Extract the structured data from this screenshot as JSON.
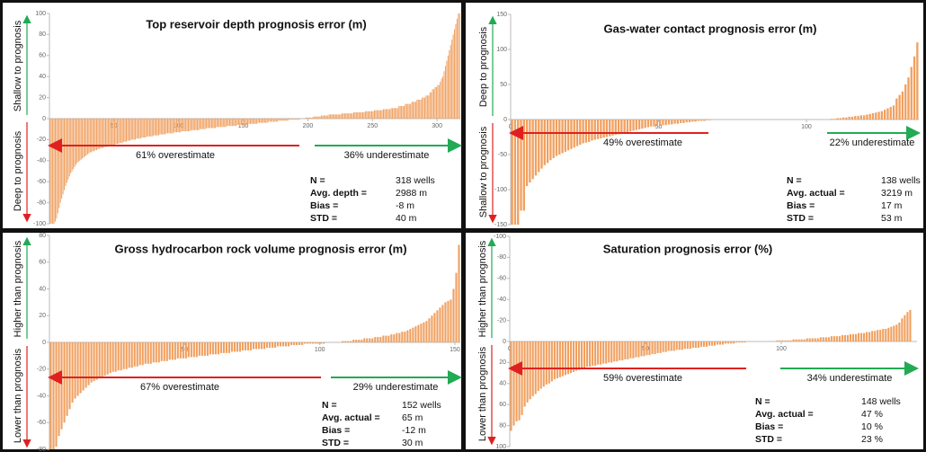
{
  "chart_data": [
    {
      "type": "bar",
      "title": "Top reservoir depth prognosis error (m)",
      "y_label_upper": "Shallow to prognosis",
      "y_label_lower": "Deep to prognosis",
      "color": "#f0a060",
      "xlim": [
        0,
        318
      ],
      "xticks": [
        50,
        100,
        150,
        200,
        250,
        300
      ],
      "ylim": [
        -100,
        100
      ],
      "yticks": [
        -100,
        -80,
        -60,
        -40,
        -20,
        0,
        20,
        40,
        60,
        80,
        100
      ],
      "annotations": [
        "61% overestimate",
        "36% underestimate"
      ],
      "stats": [
        {
          "label": "N =",
          "value": "318 wells"
        },
        {
          "label": "Avg. depth =",
          "value": "2988 m"
        },
        {
          "label": "Bias =",
          "value": "-8 m"
        },
        {
          "label": "STD =",
          "value": "40 m"
        }
      ],
      "values": [
        -100,
        -100,
        -100,
        -100,
        -98,
        -95,
        -90,
        -85,
        -80,
        -76,
        -72,
        -68,
        -64,
        -61,
        -58,
        -55,
        -52,
        -50,
        -48,
        -46,
        -44,
        -42,
        -41,
        -40,
        -39,
        -38,
        -37,
        -36,
        -35,
        -34,
        -33,
        -32,
        -32,
        -31,
        -31,
        -30,
        -30,
        -29,
        -29,
        -28,
        -28,
        -28,
        -27,
        -27,
        -27,
        -26,
        -26,
        -26,
        -25,
        -25,
        -25,
        -24,
        -24,
        -24,
        -23,
        -23,
        -23,
        -22,
        -22,
        -22,
        -21,
        -21,
        -21,
        -20,
        -20,
        -20,
        -20,
        -19,
        -19,
        -19,
        -19,
        -18,
        -18,
        -18,
        -18,
        -17,
        -17,
        -17,
        -17,
        -17,
        -16,
        -16,
        -16,
        -16,
        -16,
        -15,
        -15,
        -15,
        -15,
        -15,
        -14,
        -14,
        -14,
        -14,
        -14,
        -14,
        -13,
        -13,
        -13,
        -13,
        -13,
        -13,
        -12,
        -12,
        -12,
        -12,
        -12,
        -12,
        -12,
        -11,
        -11,
        -11,
        -11,
        -11,
        -11,
        -11,
        -10,
        -10,
        -10,
        -10,
        -10,
        -9,
        -9,
        -9,
        -9,
        -9,
        -9,
        -9,
        -9,
        -8,
        -8,
        -8,
        -8,
        -8,
        -8,
        -8,
        -8,
        -7,
        -7,
        -7,
        -7,
        -7,
        -7,
        -7,
        -7,
        -6,
        -6,
        -6,
        -6,
        -6,
        -6,
        -6,
        -6,
        -5,
        -5,
        -5,
        -5,
        -5,
        -5,
        -5,
        -5,
        -4,
        -4,
        -4,
        -4,
        -4,
        -4,
        -4,
        -4,
        -3,
        -3,
        -3,
        -3,
        -3,
        -3,
        -3,
        -3,
        -2,
        -2,
        -2,
        -2,
        -2,
        -2,
        -2,
        -2,
        -1,
        -1,
        -1,
        -1,
        -1,
        -1,
        -1,
        -1,
        -1,
        0,
        0,
        0,
        0,
        1,
        1,
        1,
        1,
        1,
        1,
        2,
        2,
        2,
        2,
        2,
        2,
        3,
        3,
        3,
        3,
        3,
        3,
        4,
        4,
        4,
        4,
        4,
        4,
        4,
        4,
        4,
        4,
        5,
        5,
        5,
        5,
        5,
        5,
        5,
        5,
        5,
        6,
        6,
        6,
        6,
        6,
        6,
        6,
        6,
        6,
        7,
        7,
        7,
        7,
        7,
        7,
        7,
        8,
        8,
        8,
        8,
        8,
        8,
        8,
        9,
        9,
        9,
        9,
        9,
        9,
        10,
        10,
        10,
        10,
        10,
        10,
        12,
        12,
        12,
        12,
        12,
        14,
        14,
        14,
        14,
        14,
        16,
        16,
        16,
        16,
        18,
        18,
        18,
        18,
        20,
        20,
        20,
        22,
        22,
        22,
        25,
        25,
        28,
        28,
        30,
        30,
        32,
        32,
        35,
        38,
        40,
        45,
        50,
        55,
        60,
        65,
        70,
        75,
        80,
        85,
        90,
        95,
        100,
        100
      ]
    },
    {
      "type": "bar",
      "title": "Gas-water contact prognosis error (m)",
      "y_label_upper": "Deep to prognosis",
      "y_label_lower": "Shallow to prognosis",
      "color": "#f0a060",
      "xlim": [
        0,
        138
      ],
      "xticks": [
        0,
        50,
        100
      ],
      "ylim": [
        -150,
        150
      ],
      "yticks": [
        -150,
        -100,
        -50,
        0,
        50,
        100,
        150
      ],
      "annotations": [
        "49% overestimate",
        "22% underestimate"
      ],
      "stats": [
        {
          "label": "N =",
          "value": "138 wells"
        },
        {
          "label": "Avg. actual =",
          "value": "3219 m"
        },
        {
          "label": "Bias =",
          "value": "17 m"
        },
        {
          "label": "STD =",
          "value": "53 m"
        }
      ],
      "values": [
        -150,
        -150,
        -150,
        -130,
        -130,
        -95,
        -90,
        -85,
        -80,
        -75,
        -70,
        -65,
        -62,
        -58,
        -55,
        -52,
        -50,
        -48,
        -46,
        -44,
        -42,
        -40,
        -38,
        -36,
        -34,
        -33,
        -32,
        -30,
        -29,
        -28,
        -27,
        -26,
        -25,
        -24,
        -23,
        -22,
        -21,
        -20,
        -19,
        -18,
        -17,
        -16,
        -15,
        -14,
        -13,
        -12,
        -11,
        -10,
        -10,
        -9,
        -9,
        -8,
        -8,
        -7,
        -7,
        -6,
        -6,
        -5,
        -5,
        -4,
        -4,
        -3,
        -3,
        -2,
        -2,
        -2,
        -1,
        -1,
        0,
        0,
        0,
        0,
        0,
        0,
        0,
        0,
        0,
        0,
        0,
        0,
        0,
        0,
        0,
        0,
        0,
        0,
        0,
        0,
        0,
        0,
        0,
        0,
        0,
        0,
        0,
        0,
        0,
        0,
        0,
        0,
        0,
        0,
        0,
        0,
        0,
        0,
        0,
        0,
        1,
        1,
        2,
        2,
        3,
        3,
        4,
        4,
        5,
        5,
        6,
        6,
        7,
        8,
        9,
        10,
        11,
        12,
        14,
        16,
        18,
        20,
        30,
        35,
        40,
        50,
        60,
        75,
        90,
        110
      ]
    },
    {
      "type": "bar",
      "title": "Gross hydrocarbon rock volume prognosis error (m)",
      "y_label_upper": "Higher than prognosis",
      "y_label_lower": "Lower than prognosis",
      "color": "#f0a060",
      "xlim": [
        0,
        152
      ],
      "xticks": [
        50,
        100,
        150
      ],
      "ylim": [
        -80,
        80
      ],
      "yticks": [
        -80,
        -60,
        -40,
        -20,
        0,
        20,
        40,
        60,
        80
      ],
      "annotations": [
        "67% overestimate",
        "29% underestimate"
      ],
      "stats": [
        {
          "label": "N =",
          "value": "152 wells"
        },
        {
          "label": "Avg. actual =",
          "value": "65 m"
        },
        {
          "label": "Bias =",
          "value": "-12 m"
        },
        {
          "label": "STD =",
          "value": "30 m"
        }
      ],
      "values": [
        -80,
        -80,
        -78,
        -70,
        -65,
        -60,
        -55,
        -50,
        -45,
        -42,
        -40,
        -38,
        -36,
        -34,
        -32,
        -30,
        -29,
        -28,
        -27,
        -26,
        -25,
        -24,
        -23,
        -22,
        -22,
        -21,
        -21,
        -20,
        -20,
        -19,
        -19,
        -18,
        -18,
        -17,
        -17,
        -16,
        -16,
        -16,
        -15,
        -15,
        -15,
        -14,
        -14,
        -14,
        -13,
        -13,
        -13,
        -12,
        -12,
        -12,
        -12,
        -11,
        -11,
        -11,
        -11,
        -10,
        -10,
        -10,
        -10,
        -9,
        -9,
        -9,
        -9,
        -8,
        -8,
        -8,
        -8,
        -7,
        -7,
        -7,
        -7,
        -6,
        -6,
        -6,
        -6,
        -5,
        -5,
        -5,
        -5,
        -5,
        -4,
        -4,
        -4,
        -4,
        -3,
        -3,
        -3,
        -3,
        -3,
        -2,
        -2,
        -2,
        -2,
        -2,
        -1,
        -1,
        -1,
        -1,
        -1,
        -1,
        -1,
        -1,
        0,
        0,
        0,
        0,
        0,
        0,
        1,
        1,
        1,
        1,
        2,
        2,
        2,
        2,
        3,
        3,
        3,
        3,
        4,
        4,
        4,
        5,
        5,
        5,
        6,
        6,
        7,
        7,
        8,
        8,
        9,
        10,
        11,
        12,
        13,
        14,
        15,
        16,
        18,
        20,
        22,
        24,
        26,
        28,
        30,
        31,
        32,
        40,
        52,
        73
      ]
    },
    {
      "type": "bar",
      "title": "Saturation prognosis error (%)",
      "y_label_upper": "Higher than prognosis",
      "y_label_lower": "Lower than prognosis",
      "color": "#f0a060",
      "xlim": [
        0,
        150
      ],
      "xticks": [
        0,
        50,
        100
      ],
      "ylim": [
        100,
        -100
      ],
      "yticks": [
        -100,
        -80,
        -60,
        -40,
        -20,
        0,
        20,
        40,
        60,
        80,
        100
      ],
      "annotations": [
        "59% overestimate",
        "34% underestimate"
      ],
      "stats": [
        {
          "label": "N =",
          "value": "148 wells"
        },
        {
          "label": "Avg. actual =",
          "value": "47 %"
        },
        {
          "label": "Bias =",
          "value": "10 %"
        },
        {
          "label": "STD =",
          "value": "23 %"
        }
      ],
      "values": [
        85,
        80,
        76,
        75,
        70,
        62,
        58,
        55,
        52,
        50,
        47,
        45,
        43,
        41,
        40,
        38,
        36,
        35,
        34,
        33,
        32,
        31,
        30,
        29,
        28,
        27,
        26,
        25,
        24,
        24,
        23,
        23,
        22,
        22,
        21,
        21,
        20,
        20,
        19,
        19,
        18,
        18,
        17,
        17,
        16,
        16,
        15,
        15,
        14,
        14,
        13,
        13,
        12,
        12,
        11,
        11,
        10,
        10,
        9,
        9,
        9,
        8,
        8,
        8,
        7,
        7,
        7,
        6,
        6,
        6,
        5,
        5,
        5,
        4,
        4,
        4,
        3,
        3,
        3,
        2,
        2,
        2,
        2,
        1,
        1,
        1,
        1,
        0,
        0,
        0,
        0,
        0,
        0,
        0,
        0,
        0,
        0,
        0,
        -1,
        -1,
        -1,
        -1,
        -1,
        -1,
        -2,
        -2,
        -2,
        -2,
        -2,
        -3,
        -3,
        -3,
        -3,
        -3,
        -4,
        -4,
        -4,
        -4,
        -5,
        -5,
        -5,
        -5,
        -6,
        -6,
        -6,
        -7,
        -7,
        -7,
        -8,
        -8,
        -8,
        -9,
        -9,
        -10,
        -10,
        -11,
        -11,
        -12,
        -12,
        -13,
        -14,
        -15,
        -16,
        -18,
        -22,
        -25,
        -28,
        -30
      ]
    }
  ]
}
